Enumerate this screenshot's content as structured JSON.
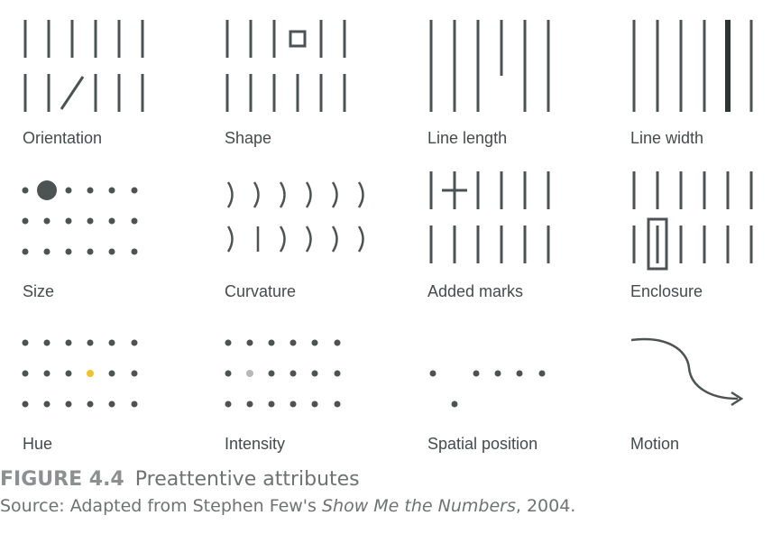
{
  "panels": [
    {
      "id": "orientation",
      "label": "Orientation"
    },
    {
      "id": "shape",
      "label": "Shape"
    },
    {
      "id": "line-length",
      "label": "Line length"
    },
    {
      "id": "line-width",
      "label": "Line width"
    },
    {
      "id": "size",
      "label": "Size"
    },
    {
      "id": "curvature",
      "label": "Curvature"
    },
    {
      "id": "added-marks",
      "label": "Added marks"
    },
    {
      "id": "enclosure",
      "label": "Enclosure"
    },
    {
      "id": "hue",
      "label": "Hue"
    },
    {
      "id": "intensity",
      "label": "Intensity"
    },
    {
      "id": "spatial-position",
      "label": "Spatial position"
    },
    {
      "id": "motion",
      "label": "Motion"
    }
  ],
  "caption": {
    "figure_number": "FIGURE 4.4",
    "title": "Preattentive attributes",
    "source_prefix": "Source: Adapted from Stephen Few's ",
    "source_book": "Show Me the Numbers",
    "source_suffix": ", 2004."
  },
  "colors": {
    "mark": "#4d5353",
    "highlight_hue": "#f2c12e",
    "highlight_intensity": "#b8b8b8"
  }
}
